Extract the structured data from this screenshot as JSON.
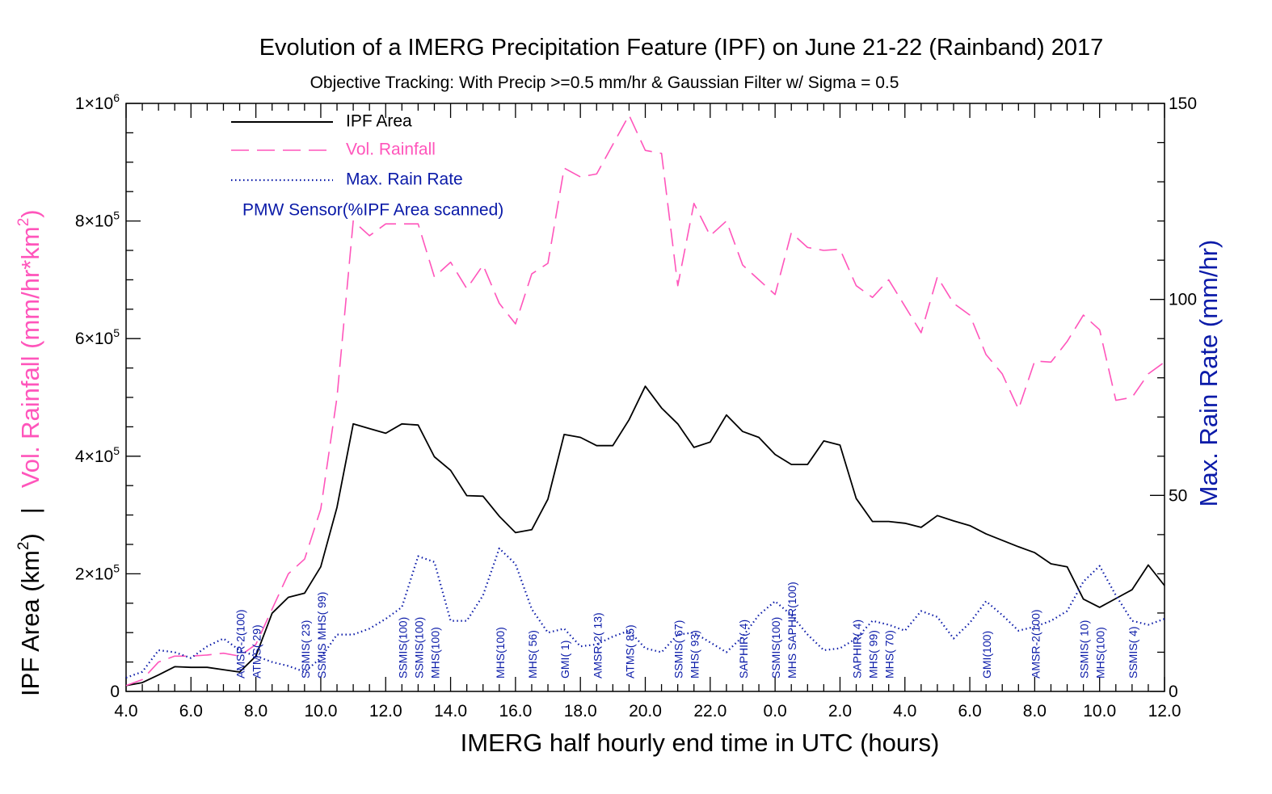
{
  "title": "Evolution of a IMERG Precipitation Feature (IPF) on  June 21-22 (Rainband)  2017",
  "subtitle": "Objective Tracking: With Precip >=0.5 mm/hr & Gaussian Filter w/ Sigma = 0.5",
  "colors": {
    "area": "#000000",
    "rainfall": "#ff55bb",
    "rate": "#0a1aa8",
    "axis": "#000000"
  },
  "chart_data": {
    "type": "line",
    "xlabel": "IMERG half hourly end time in UTC (hours)",
    "x_tick_labels": [
      "4.0",
      "6.0",
      "8.0",
      "10.0",
      "12.0",
      "14.0",
      "16.0",
      "18.0",
      "20.0",
      "22.0",
      "0.0",
      "2.0",
      "4.0",
      "6.0",
      "8.0",
      "10.0",
      "12.0"
    ],
    "xlim": [
      4.0,
      36.0
    ],
    "ylabel_left_parts": {
      "prefix": "IPF Area (km",
      "sup": "2",
      "suffix": ")",
      "separator": "|"
    },
    "ylabel_left_rain_parts": {
      "prefix": "Vol. Rainfall (mm/hr*km",
      "sup": "2",
      "suffix": ")"
    },
    "ylabel_right": "Max. Rain Rate (mm/hr)",
    "ylim_left": [
      0,
      1000000
    ],
    "ylim_right": [
      0,
      150
    ],
    "y_left_ticks": [
      {
        "value": 0,
        "base": "0",
        "exp": ""
      },
      {
        "value": 200000,
        "base": "2×10",
        "exp": "5"
      },
      {
        "value": 400000,
        "base": "4×10",
        "exp": "5"
      },
      {
        "value": 600000,
        "base": "6×10",
        "exp": "5"
      },
      {
        "value": 800000,
        "base": "8×10",
        "exp": "5"
      },
      {
        "value": 1000000,
        "base": "1×10",
        "exp": "6"
      }
    ],
    "y_right_ticks": [
      "0",
      "50",
      "100",
      "150"
    ],
    "legend": {
      "position": "top-left",
      "entries": [
        "IPF Area",
        "Vol. Rainfall",
        "Max. Rain Rate"
      ],
      "sensor_note": "PMW Sensor(%IPF Area scanned)"
    },
    "series": [
      {
        "name": "IPF Area",
        "axis": "left",
        "style": "solid",
        "color": "#000000",
        "x": [
          4.0,
          4.5,
          5.0,
          5.5,
          6.0,
          6.5,
          7.0,
          7.5,
          8.0,
          8.5,
          9.0,
          9.5,
          10.0,
          10.5,
          11.0,
          11.5,
          12.0,
          12.5,
          13.0,
          13.5,
          14.0,
          14.5,
          15.0,
          15.5,
          16.0,
          16.5,
          17.0,
          17.5,
          18.0,
          18.5,
          19.0,
          19.5,
          20.0,
          20.5,
          21.0,
          21.5,
          22.0,
          22.5,
          23.0,
          23.5,
          24.0,
          24.5,
          25.0,
          25.5,
          26.0,
          26.5,
          27.0,
          27.5,
          28.0,
          28.5,
          29.0,
          29.5,
          30.0,
          30.5,
          31.0,
          31.5,
          32.0,
          32.5,
          33.0,
          33.5,
          34.0,
          34.5,
          35.0,
          35.5,
          36.0
        ],
        "values": [
          10000,
          15000,
          28000,
          42000,
          41000,
          41000,
          37000,
          33000,
          60000,
          133000,
          160000,
          167000,
          212000,
          313000,
          455000,
          447000,
          439000,
          455000,
          453000,
          399000,
          376000,
          333000,
          332000,
          298000,
          270000,
          275000,
          327000,
          437000,
          432000,
          418000,
          418000,
          462000,
          519000,
          482000,
          455000,
          415000,
          424000,
          470000,
          442000,
          432000,
          403000,
          386000,
          386000,
          426000,
          419000,
          328000,
          289000,
          289000,
          286000,
          279000,
          299000,
          290000,
          282000,
          268000,
          257000,
          246000,
          236000,
          217000,
          212000,
          157000,
          143000,
          158000,
          173000,
          215000,
          180000
        ]
      },
      {
        "name": "Vol. Rainfall",
        "axis": "left",
        "style": "dashed",
        "color": "#ff55bb",
        "x": [
          4.0,
          4.5,
          5.0,
          5.5,
          6.0,
          6.5,
          7.0,
          7.5,
          8.0,
          8.5,
          9.0,
          9.5,
          10.0,
          10.5,
          11.0,
          11.5,
          12.0,
          12.5,
          13.0,
          13.5,
          14.0,
          14.5,
          15.0,
          15.5,
          16.0,
          16.5,
          17.0,
          17.5,
          18.0,
          18.5,
          19.0,
          19.5,
          20.0,
          20.5,
          21.0,
          21.5,
          22.0,
          22.5,
          23.0,
          23.5,
          24.0,
          24.5,
          25.0,
          25.5,
          26.0,
          26.5,
          27.0,
          27.5,
          28.0,
          28.5,
          29.0,
          29.5,
          30.0,
          30.5,
          31.0,
          31.5,
          32.0,
          32.5,
          33.0,
          33.5,
          34.0,
          34.5,
          35.0,
          35.5,
          36.0
        ],
        "values": [
          10000,
          20000,
          50000,
          60000,
          60000,
          62000,
          65000,
          60000,
          80000,
          140000,
          200000,
          225000,
          310000,
          500000,
          800000,
          775000,
          795000,
          795000,
          795000,
          705000,
          730000,
          685000,
          725000,
          660000,
          625000,
          710000,
          728000,
          890000,
          875000,
          880000,
          930000,
          980000,
          920000,
          915000,
          690000,
          830000,
          775000,
          800000,
          725000,
          700000,
          675000,
          780000,
          755000,
          750000,
          752000,
          690000,
          670000,
          700000,
          655000,
          610000,
          705000,
          660000,
          640000,
          573000,
          540000,
          480000,
          562000,
          560000,
          595000,
          640000,
          615000,
          495000,
          500000,
          540000,
          560000
        ]
      },
      {
        "name": "Max. Rain Rate",
        "axis": "right",
        "style": "dotted",
        "color": "#0a1aa8",
        "x": [
          4.0,
          4.5,
          5.0,
          5.5,
          6.0,
          6.5,
          7.0,
          7.5,
          8.0,
          8.5,
          9.0,
          9.5,
          10.0,
          10.5,
          11.0,
          11.5,
          12.0,
          12.5,
          13.0,
          13.5,
          14.0,
          14.5,
          15.0,
          15.5,
          16.0,
          16.5,
          17.0,
          17.5,
          18.0,
          18.5,
          19.0,
          19.5,
          20.0,
          20.5,
          21.0,
          21.5,
          22.0,
          22.5,
          23.0,
          23.5,
          24.0,
          24.5,
          25.0,
          25.5,
          26.0,
          26.5,
          27.0,
          27.5,
          28.0,
          28.5,
          29.0,
          29.5,
          30.0,
          30.5,
          31.0,
          31.5,
          32.0,
          32.5,
          33.0,
          33.5,
          34.0,
          34.5,
          35.0,
          35.5,
          36.0
        ],
        "values": [
          3.5,
          5.0,
          10.5,
          10.0,
          8.5,
          11.5,
          13.5,
          10.5,
          9.0,
          7.5,
          6.5,
          5.0,
          8.5,
          14.5,
          14.5,
          16.0,
          18.5,
          21.5,
          34.5,
          33.0,
          18.0,
          18.0,
          24.5,
          36.5,
          32.5,
          21.0,
          15.0,
          16.0,
          11.5,
          12.0,
          14.0,
          15.5,
          11.0,
          10.0,
          14.5,
          15.0,
          12.5,
          10.0,
          14.0,
          19.5,
          23.0,
          19.5,
          14.5,
          10.5,
          11.0,
          13.5,
          18.0,
          17.0,
          15.5,
          20.5,
          19.0,
          13.5,
          17.5,
          23.0,
          19.5,
          15.5,
          16.5,
          18.0,
          20.5,
          28.0,
          32.0,
          24.5,
          18.0,
          17.0,
          18.5
        ]
      }
    ],
    "sensors": [
      {
        "x": 7.5,
        "label": "AMSR-2(100)"
      },
      {
        "x": 8.0,
        "label": "ATMS( 29)"
      },
      {
        "x": 9.5,
        "label": "SSMIS( 23)"
      },
      {
        "x": 10.0,
        "label": "SSMIS MHS( 99)"
      },
      {
        "x": 12.5,
        "label": "SSMIS(100)"
      },
      {
        "x": 13.0,
        "label": "SSMIS(100)"
      },
      {
        "x": 13.5,
        "label": "MHS(100)"
      },
      {
        "x": 15.5,
        "label": "MHS(100)"
      },
      {
        "x": 16.5,
        "label": "MHS( 56)"
      },
      {
        "x": 17.5,
        "label": "GMI(  1)"
      },
      {
        "x": 18.5,
        "label": "AMSR-2( 13)"
      },
      {
        "x": 19.5,
        "label": "ATMS( 85)"
      },
      {
        "x": 21.0,
        "label": "SSMIS( 67)"
      },
      {
        "x": 21.5,
        "label": "MHS( 93)"
      },
      {
        "x": 23.0,
        "label": "SAPHIR(  4)"
      },
      {
        "x": 24.0,
        "label": "SSMIS(100)"
      },
      {
        "x": 24.5,
        "label": "MHS SAPHIR(100)"
      },
      {
        "x": 26.5,
        "label": "SAPHIR(  4)"
      },
      {
        "x": 27.0,
        "label": "MHS( 99)"
      },
      {
        "x": 27.5,
        "label": "MHS( 70)"
      },
      {
        "x": 30.5,
        "label": "GMI(100)"
      },
      {
        "x": 32.0,
        "label": "AMSR-2(100)"
      },
      {
        "x": 33.5,
        "label": "SSMIS( 10)"
      },
      {
        "x": 34.0,
        "label": "MHS(100)"
      },
      {
        "x": 35.0,
        "label": "SSMIS(  4)"
      }
    ]
  }
}
